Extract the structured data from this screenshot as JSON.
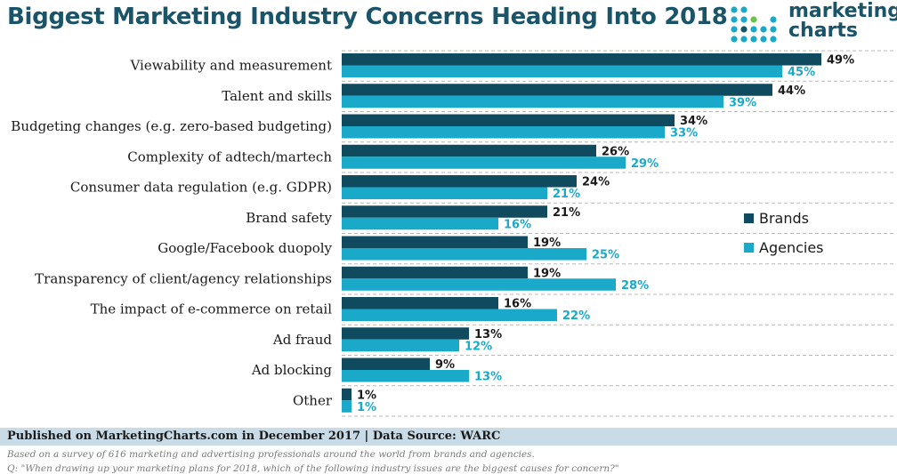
{
  "title": "Biggest Marketing Industry Concerns Heading Into 2018",
  "logo": {
    "line1": "marketing",
    "line2": "charts"
  },
  "colors": {
    "brands": "#0f4a5e",
    "agencies": "#1aa9c9",
    "title": "#1a5468",
    "dots_teal": "#1aa9c9",
    "dots_dark": "#1a5468",
    "dots_green": "#6cc24a"
  },
  "footer": {
    "published": "Published on MarketingCharts.com in December 2017 | Data Source: WARC",
    "note1": "Based on a survey of 616 marketing and advertising professionals around the world from brands and agencies.",
    "note2": "Q: \"When drawing up your marketing plans for 2018, which of the following industry issues are the biggest causes for concern?\""
  },
  "chart_data": {
    "type": "bar",
    "orientation": "horizontal",
    "title": "Biggest Marketing Industry Concerns Heading Into 2018",
    "categories": [
      "Viewability and measurement",
      "Talent and skills",
      "Budgeting changes (e.g. zero-based budgeting)",
      "Complexity of adtech/martech",
      "Consumer data regulation (e.g. GDPR)",
      "Brand safety",
      "Google/Facebook duopoly",
      "Transparency of client/agency relationships",
      "The impact of e-commerce on retail",
      "Ad fraud",
      "Ad blocking",
      "Other"
    ],
    "series": [
      {
        "name": "Brands",
        "values": [
          49,
          44,
          34,
          26,
          24,
          21,
          19,
          19,
          16,
          13,
          9,
          1
        ]
      },
      {
        "name": "Agencies",
        "values": [
          45,
          39,
          33,
          29,
          21,
          16,
          25,
          28,
          22,
          12,
          13,
          1
        ]
      }
    ],
    "value_suffix": "%",
    "xlim": [
      0,
      55
    ],
    "grid": "dashed row separators",
    "legend_position": "right"
  }
}
